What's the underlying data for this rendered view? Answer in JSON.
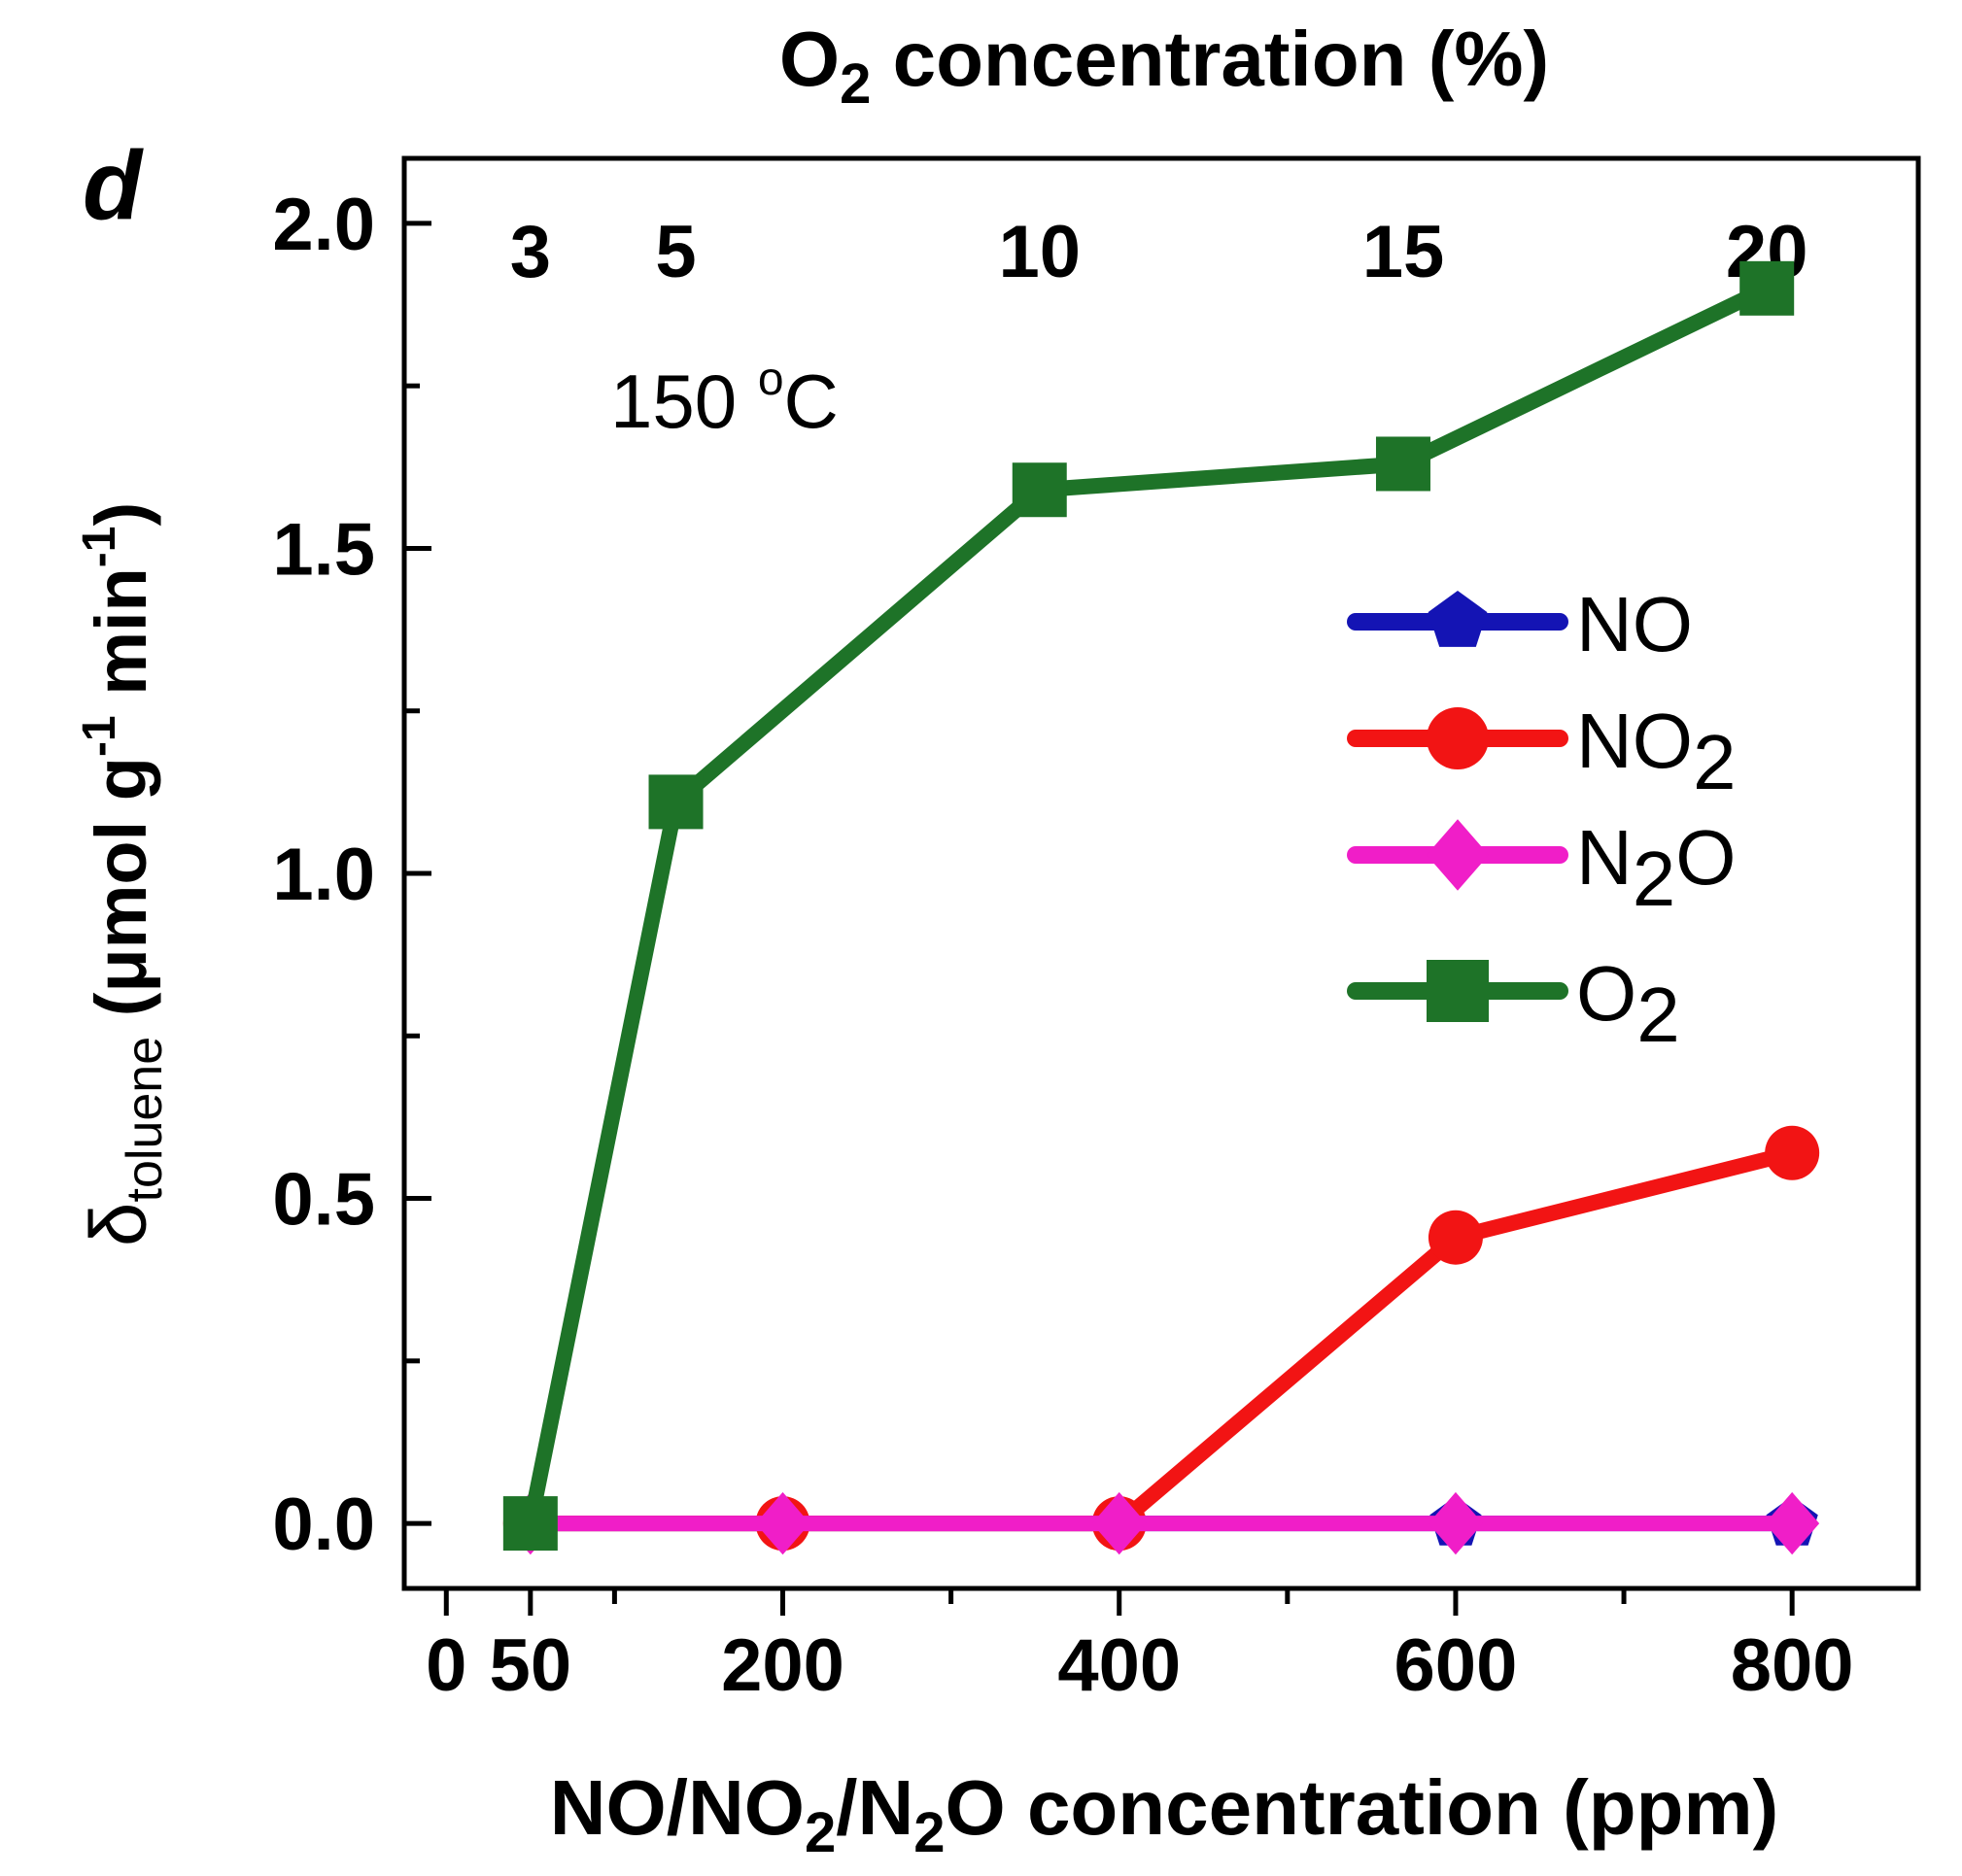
{
  "chart_data": {
    "type": "line",
    "panel_label": "d",
    "annotation": {
      "text": "150 ",
      "sup": "o",
      "suffix": "C"
    },
    "y_axis": {
      "label_delta": "δ",
      "label_sub": "toluene",
      "label_main": " (μmol g",
      "label_sup1": "-1",
      "label_mid": " min",
      "label_sup2": "-1",
      "label_end": ")",
      "ylim": [
        -0.1,
        2.1
      ],
      "ticks": [
        0.0,
        0.5,
        1.0,
        1.5,
        2.0
      ],
      "tick_labels": [
        "0.0",
        "0.5",
        "1.0",
        "1.5",
        "2.0"
      ],
      "minor_ticks": [
        0.25,
        0.75,
        1.25,
        1.75
      ]
    },
    "x_bottom": {
      "label_parts": [
        {
          "t": "NO/NO",
          "sub": false
        },
        {
          "t": "2",
          "sub": true
        },
        {
          "t": "/N",
          "sub": false
        },
        {
          "t": "2",
          "sub": true
        },
        {
          "t": "O concentration (ppm)",
          "sub": false
        }
      ],
      "xlim": [
        -25,
        875
      ],
      "ticks": [
        0,
        50,
        200,
        400,
        600,
        800
      ],
      "tick_labels": [
        "0",
        "50",
        "200",
        "400",
        "600",
        "800"
      ],
      "minor_ticks": [
        100,
        300,
        500,
        700
      ]
    },
    "x_top": {
      "label_parts": [
        {
          "t": "O",
          "sub": false
        },
        {
          "t": "2",
          "sub": true
        },
        {
          "t": " concentration (%)",
          "sub": false
        }
      ],
      "ticks": [
        3,
        5,
        10,
        15,
        20
      ],
      "tick_labels": [
        "3",
        "5",
        "10",
        "15",
        "20"
      ],
      "mapping": {
        "x0": 3,
        "xb0": 50,
        "x1": 20,
        "xb1": 785
      }
    },
    "series": [
      {
        "name": "NO",
        "name_main": "NO",
        "name_sub": "",
        "name_tail": "",
        "color": "#1414b4",
        "marker": "pentagon",
        "axis": "bottom",
        "x": [
          50,
          200,
          400,
          600,
          800
        ],
        "values": [
          0,
          0,
          0,
          0,
          0
        ]
      },
      {
        "name": "NO2",
        "name_main": "NO",
        "name_sub": "2",
        "name_tail": "",
        "color": "#f21414",
        "marker": "circle",
        "axis": "bottom",
        "x": [
          50,
          200,
          400,
          600,
          800
        ],
        "values": [
          0,
          0,
          0,
          0.44,
          0.57
        ]
      },
      {
        "name": "N2O",
        "name_main": "N",
        "name_sub": "2",
        "name_tail": "O",
        "color": "#f01ec8",
        "marker": "diamond",
        "axis": "bottom",
        "x": [
          50,
          200,
          400,
          600,
          800
        ],
        "values": [
          0,
          0,
          0,
          0,
          0
        ]
      },
      {
        "name": "O2",
        "name_main": "O",
        "name_sub": "2",
        "name_tail": "",
        "color": "#1e7328",
        "marker": "square",
        "axis": "top",
        "x": [
          3,
          5,
          10,
          15,
          20
        ],
        "values": [
          0,
          1.11,
          1.59,
          1.63,
          1.9
        ]
      }
    ]
  }
}
